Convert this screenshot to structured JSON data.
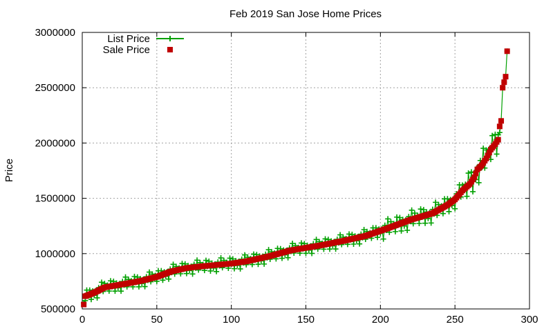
{
  "chart_data": {
    "type": "scatter",
    "title": "Feb 2019 San Jose Home Prices",
    "xlabel": "",
    "ylabel": "Price",
    "xlim": [
      0,
      300
    ],
    "ylim": [
      500000,
      3000000
    ],
    "x_ticks": [
      0,
      50,
      100,
      150,
      200,
      250,
      300
    ],
    "y_ticks": [
      500000,
      1000000,
      1500000,
      2000000,
      2500000,
      3000000
    ],
    "grid": true,
    "legend_position": "top-left",
    "x_count": 285,
    "sale_anchors": [
      [
        1,
        540000
      ],
      [
        2,
        615000
      ],
      [
        5,
        630000
      ],
      [
        10,
        660000
      ],
      [
        15,
        695000
      ],
      [
        30,
        730000
      ],
      [
        40,
        755000
      ],
      [
        50,
        790000
      ],
      [
        60,
        840000
      ],
      [
        70,
        870000
      ],
      [
        80,
        885000
      ],
      [
        100,
        910000
      ],
      [
        110,
        930000
      ],
      [
        125,
        975000
      ],
      [
        140,
        1030000
      ],
      [
        160,
        1075000
      ],
      [
        175,
        1115000
      ],
      [
        190,
        1160000
      ],
      [
        205,
        1230000
      ],
      [
        220,
        1305000
      ],
      [
        235,
        1365000
      ],
      [
        245,
        1440000
      ],
      [
        250,
        1490000
      ],
      [
        255,
        1570000
      ],
      [
        260,
        1630000
      ],
      [
        263,
        1690000
      ],
      [
        265,
        1760000
      ],
      [
        268,
        1800000
      ],
      [
        271,
        1860000
      ],
      [
        274,
        1940000
      ],
      [
        277,
        1990000
      ],
      [
        279,
        2030000
      ],
      [
        280,
        2150000
      ],
      [
        281,
        2200000
      ],
      [
        282,
        2500000
      ],
      [
        283,
        2550000
      ],
      [
        284,
        2600000
      ],
      [
        285,
        2830000
      ]
    ],
    "list_offsets": [
      0,
      20000,
      -30000,
      40000,
      -10000,
      50000,
      -60000,
      15000,
      -25000,
      35000,
      -50000,
      60000,
      -5000,
      25000,
      -40000,
      10000
    ],
    "series": [
      {
        "name": "List Price",
        "color": "#00a000",
        "marker": "plus",
        "connected": true
      },
      {
        "name": "Sale Price",
        "color": "#c00000",
        "marker": "square",
        "connected": false
      }
    ]
  }
}
